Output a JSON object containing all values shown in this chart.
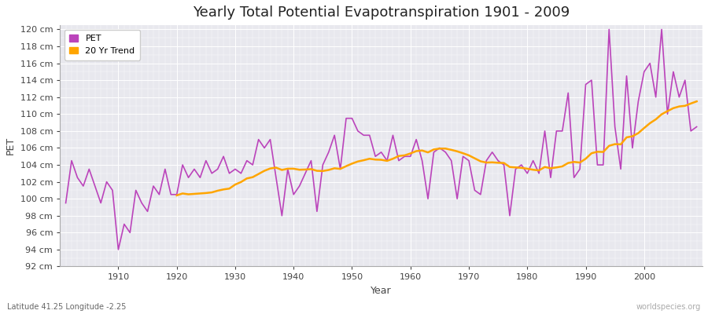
{
  "title": "Yearly Total Potential Evapotranspiration 1901 - 2009",
  "xlabel": "Year",
  "ylabel": "PET",
  "subtitle": "Latitude 41.25 Longitude -2.25",
  "watermark": "worldspecies.org",
  "years": [
    1901,
    1902,
    1903,
    1904,
    1905,
    1906,
    1907,
    1908,
    1909,
    1910,
    1911,
    1912,
    1913,
    1914,
    1915,
    1916,
    1917,
    1918,
    1919,
    1920,
    1921,
    1922,
    1923,
    1924,
    1925,
    1926,
    1927,
    1928,
    1929,
    1930,
    1931,
    1932,
    1933,
    1934,
    1935,
    1936,
    1937,
    1938,
    1939,
    1940,
    1941,
    1942,
    1943,
    1944,
    1945,
    1946,
    1947,
    1948,
    1949,
    1950,
    1951,
    1952,
    1953,
    1954,
    1955,
    1956,
    1957,
    1958,
    1959,
    1960,
    1961,
    1962,
    1963,
    1964,
    1965,
    1966,
    1967,
    1968,
    1969,
    1970,
    1971,
    1972,
    1973,
    1974,
    1975,
    1976,
    1977,
    1978,
    1979,
    1980,
    1981,
    1982,
    1983,
    1984,
    1985,
    1986,
    1987,
    1988,
    1989,
    1990,
    1991,
    1992,
    1993,
    1994,
    1995,
    1996,
    1997,
    1998,
    1999,
    2000,
    2001,
    2002,
    2003,
    2004,
    2005,
    2006,
    2007,
    2008,
    2009
  ],
  "pet": [
    99.5,
    104.5,
    102.5,
    101.5,
    103.5,
    101.5,
    99.5,
    102.0,
    101.0,
    94.0,
    97.0,
    96.0,
    101.0,
    99.5,
    98.5,
    101.5,
    100.5,
    103.5,
    100.5,
    100.5,
    104.0,
    102.5,
    103.5,
    102.5,
    104.5,
    103.0,
    103.5,
    105.0,
    103.0,
    103.5,
    103.0,
    104.5,
    104.0,
    107.0,
    106.0,
    107.0,
    102.5,
    98.0,
    103.5,
    100.5,
    101.5,
    103.0,
    104.5,
    98.5,
    104.0,
    105.5,
    107.5,
    103.5,
    109.5,
    109.5,
    108.0,
    107.5,
    107.5,
    105.0,
    105.5,
    104.5,
    107.5,
    104.5,
    105.0,
    105.0,
    107.0,
    104.5,
    100.0,
    105.5,
    106.0,
    105.5,
    104.5,
    100.0,
    105.0,
    104.5,
    101.0,
    100.5,
    104.5,
    105.5,
    104.5,
    104.0,
    98.0,
    103.5,
    104.0,
    103.0,
    104.5,
    103.0,
    108.0,
    102.5,
    108.0,
    108.0,
    112.5,
    102.5,
    103.5,
    113.5,
    114.0,
    104.0,
    104.0,
    120.0,
    108.5,
    103.5,
    114.5,
    106.0,
    111.5,
    115.0,
    116.0,
    112.0,
    120.0,
    110.0,
    115.0,
    112.0,
    114.0,
    108.0,
    108.5
  ],
  "pet_color": "#bb44bb",
  "trend_color": "#FFA500",
  "ylim": [
    92,
    120
  ],
  "ytick_step": 2,
  "fig_bg_color": "#ffffff",
  "plot_bg_color": "#e8e8ee",
  "grid_color": "#ffffff",
  "legend_labels": [
    "PET",
    "20 Yr Trend"
  ],
  "trend_window": 20,
  "title_fontsize": 13,
  "label_fontsize": 9,
  "tick_fontsize": 8
}
